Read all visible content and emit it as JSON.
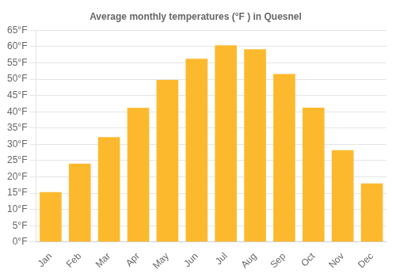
{
  "chart_data": {
    "type": "bar",
    "title": "Average monthly temperatures (°F ) in Quesnel",
    "categories": [
      "Jan",
      "Feb",
      "Mar",
      "Apr",
      "May",
      "Jun",
      "Jul",
      "Aug",
      "Sep",
      "Oct",
      "Nov",
      "Dec"
    ],
    "values": [
      15.3,
      24.1,
      32.2,
      41.2,
      49.8,
      56.3,
      60.4,
      59.2,
      51.6,
      41.3,
      28.2,
      18.0
    ],
    "color": "#FDB92E",
    "ylim": [
      0,
      65
    ],
    "yticks": [
      {
        "value": 0,
        "label": "0°F"
      },
      {
        "value": 5,
        "label": "5°F"
      },
      {
        "value": 10,
        "label": "10°F"
      },
      {
        "value": 15,
        "label": "15°F"
      },
      {
        "value": 20,
        "label": "20°F"
      },
      {
        "value": 25,
        "label": "25°F"
      },
      {
        "value": 30,
        "label": "30°F"
      },
      {
        "value": 35,
        "label": "35°F"
      },
      {
        "value": 40,
        "label": "40°F"
      },
      {
        "value": 45,
        "label": "45°F"
      },
      {
        "value": 50,
        "label": "50°F"
      },
      {
        "value": 55,
        "label": "55°F"
      },
      {
        "value": 60,
        "label": "60°F"
      },
      {
        "value": 65,
        "label": "65°F"
      }
    ],
    "grid": true
  }
}
